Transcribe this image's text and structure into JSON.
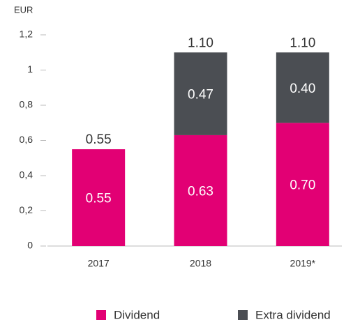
{
  "chart_data": {
    "type": "stacked_bar",
    "y_unit_label": "EUR",
    "categories": [
      "2017",
      "2018",
      "2019*"
    ],
    "series": [
      {
        "name": "Dividend",
        "color": "#e20074",
        "values": [
          0.55,
          0.63,
          0.7
        ],
        "value_labels": [
          "0.55",
          "0.63",
          "0.70"
        ]
      },
      {
        "name": "Extra dividend",
        "color": "#4b4e53",
        "values": [
          null,
          0.47,
          0.4
        ],
        "value_labels": [
          null,
          "0.47",
          "0.40"
        ]
      }
    ],
    "totals": [
      0.55,
      1.1,
      1.1
    ],
    "total_labels": [
      "0.55",
      "1.10",
      "1.10"
    ],
    "ylim": [
      0,
      1.2
    ],
    "yticks": [
      0,
      {
        "value": 0.2,
        "label": "0,2"
      },
      {
        "value": 0.4,
        "label": "0,4"
      },
      {
        "value": 0.6,
        "label": "0,6"
      },
      {
        "value": 0.8,
        "label": "0,8"
      },
      1,
      {
        "value": 1.2,
        "label": "1,2"
      }
    ],
    "legend": "bottom"
  }
}
